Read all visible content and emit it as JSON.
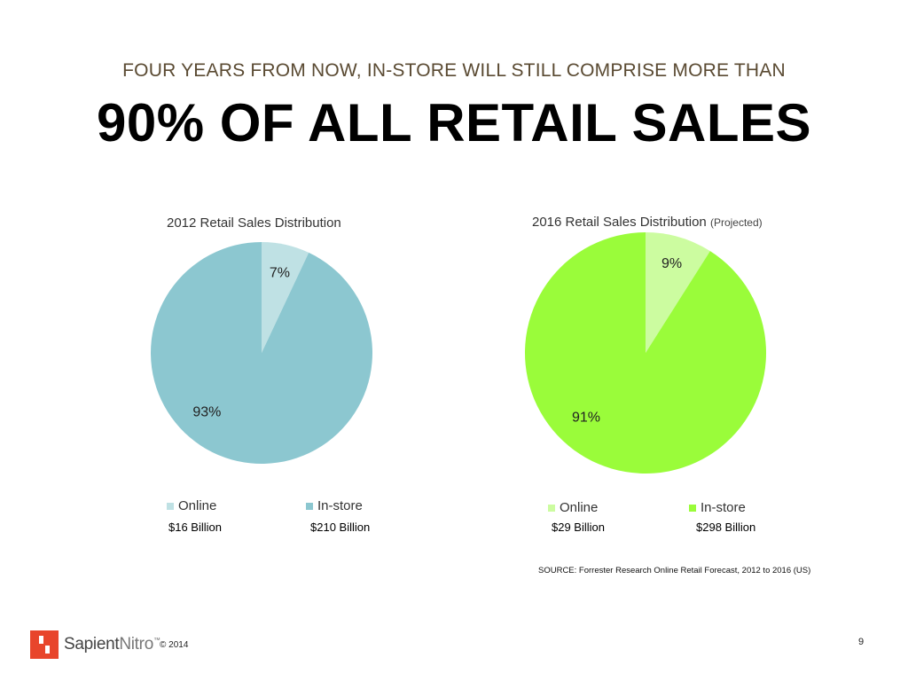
{
  "slide": {
    "subtitle": "FOUR YEARS FROM NOW, IN-STORE WILL STILL COMPRISE MORE THAN",
    "headline": "90% OF ALL RETAIL SALES",
    "source": "SOURCE: Forrester Research Online Retail Forecast, 2012 to 2016 (US)",
    "copyright": "© 2014",
    "page_number": "9",
    "logo": {
      "part1": "Sapient",
      "part2": "Nitro",
      "tm": "™"
    }
  },
  "chart_data": [
    {
      "type": "pie",
      "title": "2012 Retail Sales Distribution",
      "title_note": "",
      "categories": [
        "Online",
        "In-store"
      ],
      "values": [
        7,
        93
      ],
      "labels": [
        "7%",
        "93%"
      ],
      "amounts": [
        "$16 Billion",
        "$210 Billion"
      ],
      "colors": [
        "#bfe1e4",
        "#8cc7d0"
      ],
      "legend_position": "bottom"
    },
    {
      "type": "pie",
      "title": "2016 Retail Sales Distribution",
      "title_note": "(Projected)",
      "categories": [
        "Online",
        "In-store"
      ],
      "values": [
        9,
        91
      ],
      "labels": [
        "9%",
        "91%"
      ],
      "amounts": [
        "$29 Billion",
        "$298 Billion"
      ],
      "colors": [
        "#ccfca0",
        "#9afc3a"
      ],
      "legend_position": "bottom"
    }
  ]
}
